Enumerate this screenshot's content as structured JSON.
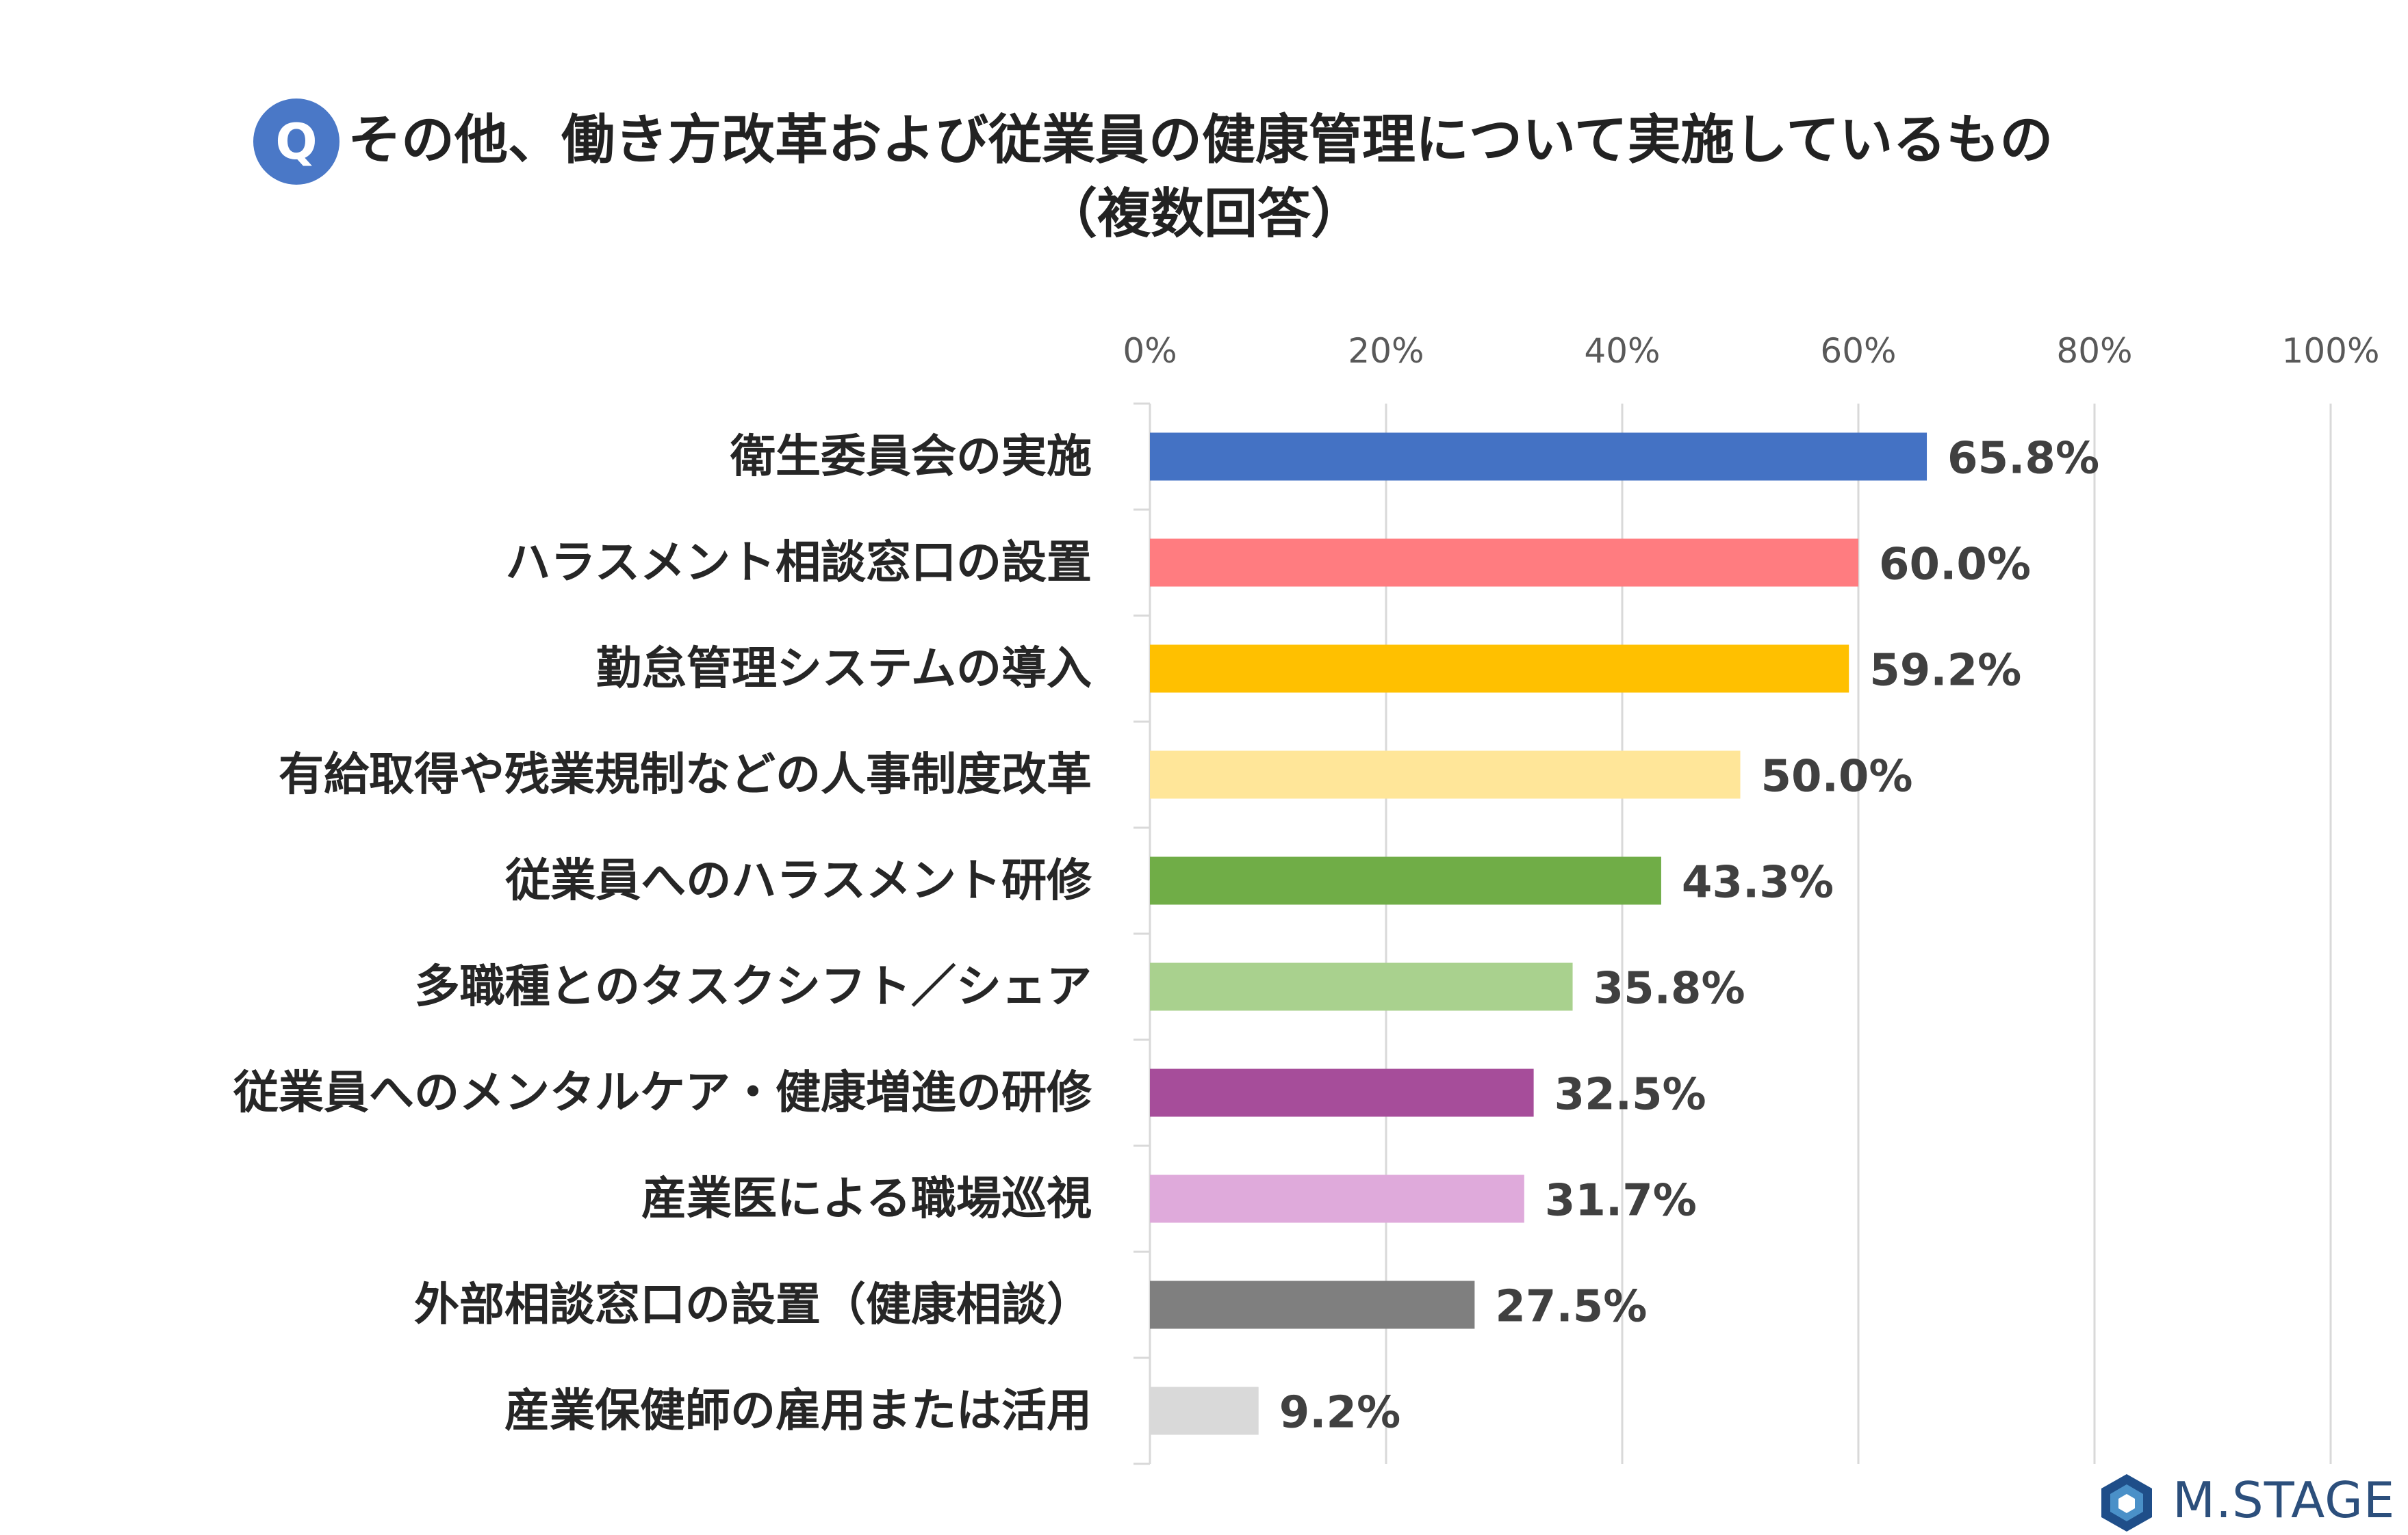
{
  "title": {
    "badge": "Q",
    "line1": "その他、働き方改革および従業員の健康管理について実施しているもの",
    "line2": "（複数回答）"
  },
  "logo": {
    "text": "M.STAGE",
    "colors": [
      "#1f4e89",
      "#4a90c8",
      "#2c6aa8"
    ]
  },
  "chart_data": {
    "type": "bar",
    "orientation": "horizontal",
    "title": "その他、働き方改革および従業員の健康管理について実施しているもの（複数回答）",
    "xlim": [
      0,
      100
    ],
    "xticks": [
      0,
      20,
      40,
      60,
      80,
      100
    ],
    "xtick_labels": [
      "0%",
      "20%",
      "40%",
      "60%",
      "80%",
      "100%"
    ],
    "grid": true,
    "unit": "%",
    "categories": [
      "衛生委員会の実施",
      "ハラスメント相談窓口の設置",
      "勤怠管理システムの導入",
      "有給取得や残業規制などの人事制度改革",
      "従業員へのハラスメント研修",
      "多職種とのタスクシフト／シェア",
      "従業員へのメンタルケア・健康増進の研修",
      "産業医による職場巡視",
      "外部相談窓口の設置（健康相談）",
      "産業保健師の雇用または活用"
    ],
    "values": [
      65.8,
      60.0,
      59.2,
      50.0,
      43.3,
      35.8,
      32.5,
      31.7,
      27.5,
      9.2
    ],
    "value_labels": [
      "65.8%",
      "60.0%",
      "59.2%",
      "50.0%",
      "43.3%",
      "35.8%",
      "32.5%",
      "31.7%",
      "27.5%",
      "9.2%"
    ],
    "colors": [
      "#4472c4",
      "#ff7c80",
      "#ffc000",
      "#ffe699",
      "#70ad47",
      "#a9d18e",
      "#a64d9a",
      "#dfaadb",
      "#7f7f7f",
      "#d9d9d9"
    ]
  }
}
